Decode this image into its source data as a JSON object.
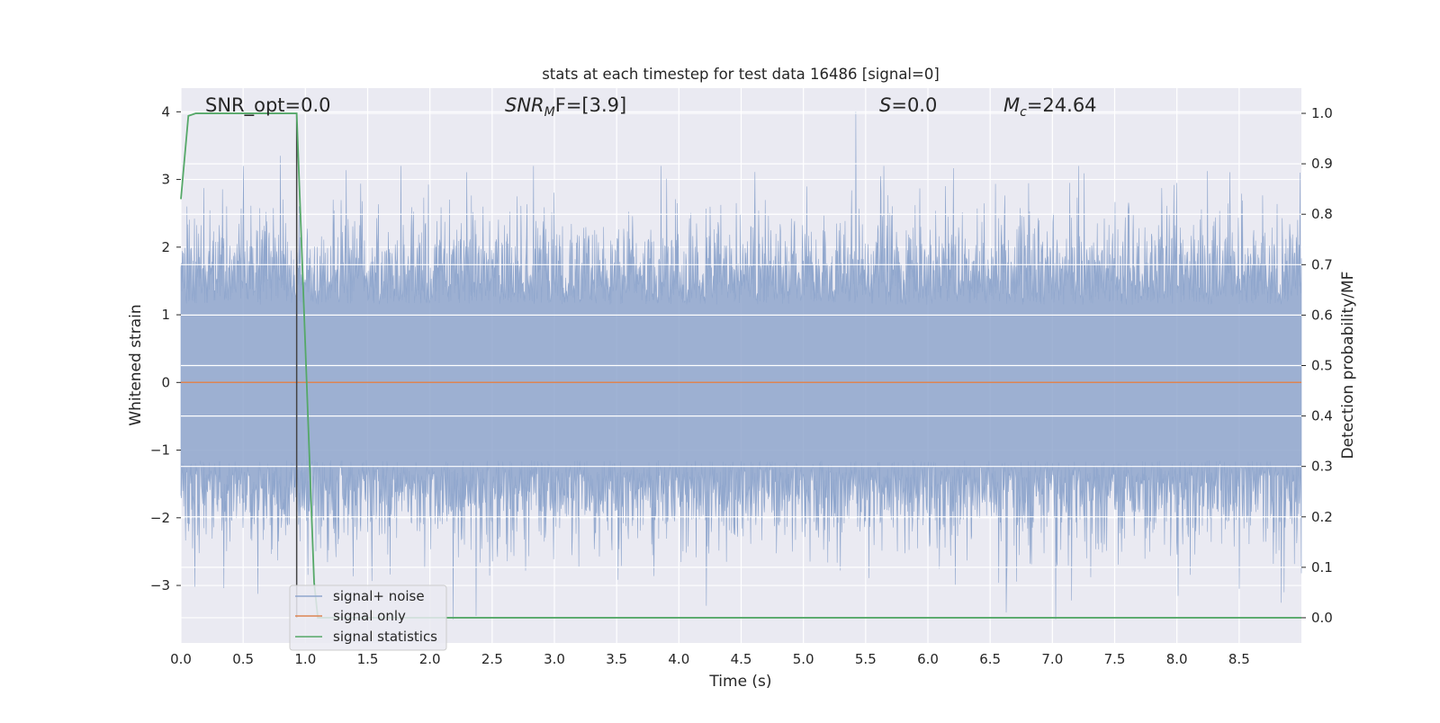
{
  "chart_data": {
    "type": "line",
    "title": "stats at each timestep for test data 16486 [signal=0]",
    "xlabel": "Time (s)",
    "ylabel": "Whitened strain",
    "y2label": "Detection probability/MF",
    "xlim": [
      0.0,
      9.0
    ],
    "ylim": [
      -3.85,
      4.35
    ],
    "y2lim": [
      -0.05,
      1.05
    ],
    "x_ticks": [
      "0.0",
      "0.5",
      "1.0",
      "1.5",
      "2.0",
      "2.5",
      "3.0",
      "3.5",
      "4.0",
      "4.5",
      "5.0",
      "5.5",
      "6.0",
      "6.5",
      "7.0",
      "7.5",
      "8.0",
      "8.5"
    ],
    "y_ticks": [
      "4",
      "3",
      "2",
      "1",
      "0",
      "−1",
      "−2",
      "−3"
    ],
    "y2_ticks": [
      "1.0",
      "0.9",
      "0.8",
      "0.7",
      "0.6",
      "0.5",
      "0.4",
      "0.3",
      "0.2",
      "0.1",
      "0.0"
    ],
    "grid": true,
    "legend_position": "lower-left",
    "series": [
      {
        "name": "signal+ noise",
        "color": "#8fa6cd",
        "axis": "left",
        "description_values": "whitened noise, approx. within [-3.5, 4.0]",
        "peaks": [
          {
            "x": 0.05,
            "y": 2.6
          },
          {
            "x": 0.8,
            "y": 3.35
          },
          {
            "x": 0.87,
            "y": -2.1
          },
          {
            "x": 2.37,
            "y": -3.45
          },
          {
            "x": 4.22,
            "y": -3.3
          },
          {
            "x": 5.42,
            "y": 4.0
          },
          {
            "x": 6.63,
            "y": -3.4
          },
          {
            "x": 8.0,
            "y": 2.95
          },
          {
            "x": 8.5,
            "y": -3.05
          },
          {
            "x": 8.86,
            "y": -3.1
          },
          {
            "x": 8.99,
            "y": 3.1
          }
        ]
      },
      {
        "name": "signal only",
        "color": "#dd8452",
        "axis": "left",
        "x": [
          0.0,
          9.0
        ],
        "y": [
          0.0,
          0.0
        ]
      },
      {
        "name": "signal statistics",
        "color": "#55a868",
        "axis": "right",
        "x": [
          0.0,
          0.06,
          0.12,
          0.93,
          1.07,
          1.1,
          9.0
        ],
        "y": [
          0.83,
          0.995,
          1.0,
          1.0,
          0.07,
          0.0,
          0.0
        ]
      }
    ],
    "vline": {
      "x": 0.93,
      "color": "#444444"
    },
    "annotations": [
      {
        "text": "SNR_opt=0.0",
        "x": 0.2,
        "y": 4.1
      },
      {
        "text_main": "SNR",
        "text_sub": "M",
        "text_rest": "F=[3.9]",
        "x": 2.6,
        "y": 4.1
      },
      {
        "text_main": "S",
        "text_rest": "=0.0",
        "x": 5.6,
        "y": 4.1
      },
      {
        "text_main": "M",
        "text_sub": "c",
        "text_rest": "=24.64",
        "x": 6.6,
        "y": 4.1
      }
    ]
  }
}
